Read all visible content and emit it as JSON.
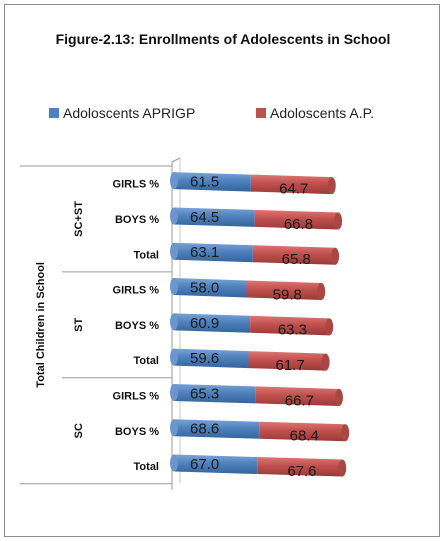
{
  "chart_data": {
    "type": "bar",
    "orientation": "horizontal",
    "stacked": true,
    "title": "Figure-2.13: Enrollments of Adolescents in School",
    "ylabel": "Total Children in School",
    "legend_position": "top",
    "groups": [
      {
        "name": "SC+ST",
        "categories": [
          "GIRLS %",
          "BOYS %",
          "Total"
        ]
      },
      {
        "name": "ST",
        "categories": [
          "GIRLS %",
          "BOYS %",
          "Total"
        ]
      },
      {
        "name": "SC",
        "categories": [
          "GIRLS %",
          "BOYS %",
          "Total"
        ]
      }
    ],
    "series": [
      {
        "name": "Adoloscents APRIGP",
        "color": "#4f81bd",
        "values": [
          61.5,
          64.5,
          63.1,
          58.0,
          60.9,
          59.6,
          65.3,
          68.6,
          67.0
        ]
      },
      {
        "name": "Adoloscents A.P.",
        "color": "#c0504d",
        "values": [
          64.7,
          66.8,
          65.8,
          59.8,
          63.3,
          61.7,
          66.7,
          68.4,
          67.6
        ]
      }
    ],
    "labels": {
      "s0": [
        "61.5",
        "64.5",
        "63.1",
        "58.0",
        "60.9",
        "59.6",
        "65.3",
        "68.6",
        "67.0"
      ],
      "s1": [
        "64.7",
        "66.8",
        "65.8",
        "59.8",
        "63.3",
        "61.7",
        "66.7",
        "68.4",
        "67.6"
      ]
    }
  }
}
